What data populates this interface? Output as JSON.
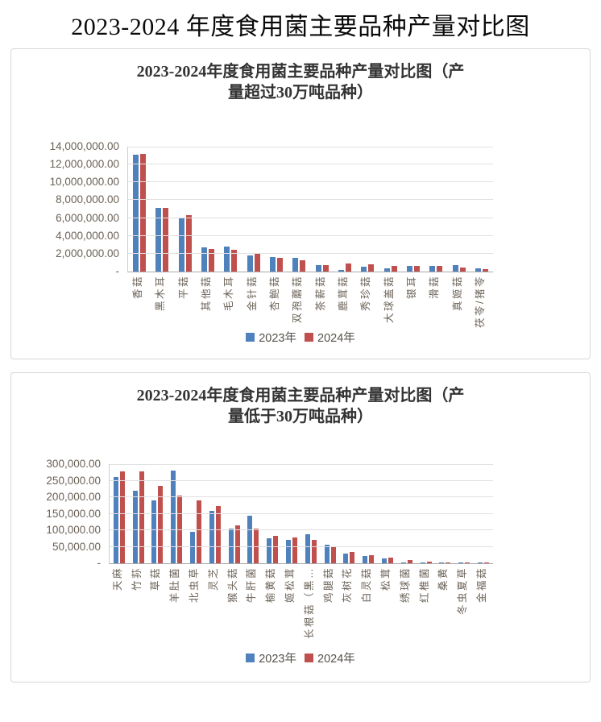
{
  "page": {
    "title": "2023-2024 年度食用菌主要品种产量对比图"
  },
  "colors": {
    "blue_2023": "#4F81BD",
    "red_2024": "#C0504D",
    "gridline": "#e0e0e0",
    "axis_text": "#6b6257"
  },
  "chart_data": [
    {
      "type": "bar",
      "title_lines": [
        "2023-2024年度食用菌主要品种产量对比图（产",
        "量超过30万吨品种）"
      ],
      "categories": [
        "香菇",
        "黑木耳",
        "平菇",
        "其他菇",
        "毛木耳",
        "金针菇",
        "杏鲍菇",
        "双孢蘑菇",
        "茶薪菇",
        "鹿茸菇",
        "秀珍菇",
        "大球盖菇",
        "银耳",
        "滑菇",
        "真姬菇",
        "茯苓/猪苓"
      ],
      "series": [
        {
          "name": "2023年",
          "color": "#4F81BD",
          "values": [
            13100000,
            7100000,
            6050000,
            2700000,
            2800000,
            1800000,
            1650000,
            1500000,
            730000,
            180000,
            570000,
            400000,
            630000,
            640000,
            730000,
            330000
          ]
        },
        {
          "name": "2024年",
          "color": "#C0504D",
          "values": [
            13150000,
            7150000,
            6300000,
            2550000,
            2400000,
            1950000,
            1570000,
            1280000,
            730000,
            880000,
            820000,
            600000,
            620000,
            600000,
            450000,
            280000
          ]
        }
      ],
      "ylim": [
        0,
        14000000
      ],
      "ytick_values": [
        14000000,
        12000000,
        10000000,
        8000000,
        6000000,
        4000000,
        2000000,
        0
      ],
      "ytick_labels": [
        "14,000,000.00",
        "12,000,000.00",
        "10,000,000.00",
        "8,000,000.00",
        "6,000,000.00",
        "4,000,000.00",
        "2,000,000.00",
        "-"
      ],
      "xlabel": "",
      "ylabel": "",
      "grid": true,
      "legend_position": "bottom"
    },
    {
      "type": "bar",
      "title_lines": [
        "2023-2024年度食用菌主要品种产量对比图（产",
        "量低于30万吨品种）"
      ],
      "categories": [
        "天麻",
        "竹荪",
        "草菇",
        "羊肚菌",
        "北虫草",
        "灵芝",
        "猴头菇",
        "牛肝菌",
        "榆黄菇",
        "姬松茸",
        "长根菇（黑…",
        "鸡腿菇",
        "灰树花",
        "白灵菇",
        "松茸",
        "绣球菌",
        "红椎菌",
        "桑黄",
        "冬虫夏草",
        "金福菇"
      ],
      "series": [
        {
          "name": "2023年",
          "color": "#4F81BD",
          "values": [
            260000,
            220000,
            190000,
            280000,
            95000,
            158000,
            105000,
            143000,
            76000,
            70000,
            87000,
            57000,
            30000,
            22000,
            14000,
            2000,
            1000,
            800,
            500,
            400
          ]
        },
        {
          "name": "2024年",
          "color": "#C0504D",
          "values": [
            277000,
            277000,
            235000,
            205000,
            190000,
            172000,
            115000,
            105000,
            82000,
            78000,
            70000,
            50000,
            35000,
            24000,
            18000,
            9000,
            5000,
            1000,
            600,
            500
          ]
        }
      ],
      "ylim": [
        0,
        300000
      ],
      "ytick_values": [
        300000,
        250000,
        200000,
        150000,
        100000,
        50000,
        0
      ],
      "ytick_labels": [
        "300,000.00",
        "250,000.00",
        "200,000.00",
        "150,000.00",
        "100,000.00",
        "50,000.00",
        "-"
      ],
      "xlabel": "",
      "ylabel": "",
      "grid": true,
      "legend_position": "bottom"
    }
  ]
}
